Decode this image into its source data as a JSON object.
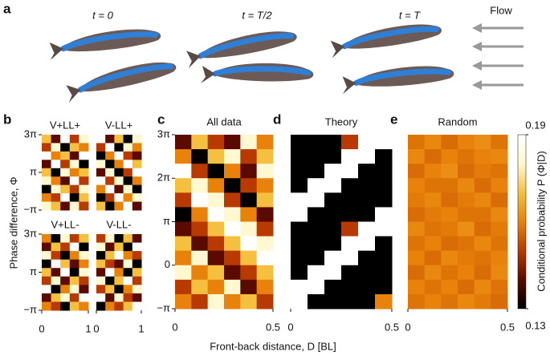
{
  "panel_a": {
    "label": "a",
    "times": [
      "t = 0",
      "t = T/2",
      "t = T"
    ],
    "flow": "Flow"
  },
  "y_label": "Phase difference, Φ",
  "x_label": "Front-back distance, D [BL]",
  "colorbar": {
    "label": "Conditional probability P (Φ|D)",
    "lim": [
      0.13,
      0.19
    ],
    "ticks": [
      0.13,
      0.19
    ],
    "colormap": [
      "#000000",
      "#5a0a00",
      "#b83a00",
      "#e8820a",
      "#f5c040",
      "#fff8d0",
      "#ffffff"
    ]
  },
  "chart_data": [
    {
      "type": "heatmap",
      "label": "b",
      "title": "V+LL+",
      "xlim": [
        0,
        1
      ],
      "ylim": [
        -3.1416,
        9.4248
      ],
      "yticks": [
        {
          "value": 9.4248,
          "label": "3π"
        },
        {
          "value": 3.1416,
          "label": "π"
        },
        {
          "value": -3.1416,
          "label": "−π"
        }
      ],
      "values": [
        [
          0.17,
          0.14,
          0.19,
          0.15,
          0.18
        ],
        [
          0.15,
          0.18,
          0.13,
          0.17,
          0.16
        ],
        [
          0.19,
          0.16,
          0.17,
          0.14,
          0.19
        ],
        [
          0.14,
          0.19,
          0.15,
          0.18,
          0.13
        ],
        [
          0.17,
          0.13,
          0.18,
          0.16,
          0.17
        ],
        [
          0.18,
          0.16,
          0.14,
          0.19,
          0.15
        ],
        [
          0.13,
          0.18,
          0.17,
          0.15,
          0.18
        ],
        [
          0.16,
          0.15,
          0.19,
          0.13,
          0.17
        ],
        [
          0.18,
          0.17,
          0.14,
          0.18,
          0.15
        ]
      ]
    },
    {
      "type": "heatmap",
      "title": "V-LL+",
      "xlim": [
        0,
        1
      ],
      "ylim": [
        -3.1416,
        9.4248
      ],
      "values": [
        [
          0.19,
          0.14,
          0.17,
          0.13,
          0.18
        ],
        [
          0.15,
          0.19,
          0.13,
          0.18,
          0.16
        ],
        [
          0.13,
          0.16,
          0.19,
          0.15,
          0.14
        ],
        [
          0.18,
          0.13,
          0.16,
          0.19,
          0.17
        ],
        [
          0.14,
          0.18,
          0.13,
          0.15,
          0.19
        ],
        [
          0.19,
          0.15,
          0.18,
          0.13,
          0.16
        ],
        [
          0.16,
          0.19,
          0.14,
          0.18,
          0.13
        ],
        [
          0.13,
          0.15,
          0.19,
          0.16,
          0.18
        ],
        [
          0.17,
          0.13,
          0.16,
          0.19,
          0.14
        ]
      ]
    },
    {
      "type": "heatmap",
      "title": "V+LL-",
      "xlim": [
        0,
        1
      ],
      "ylim": [
        -3.1416,
        9.4248
      ],
      "xticks": [
        0,
        1
      ],
      "yticks": [
        {
          "value": 9.4248,
          "label": "3π"
        },
        {
          "value": 3.1416,
          "label": "π"
        },
        {
          "value": -3.1416,
          "label": "−π"
        }
      ],
      "values": [
        [
          0.16,
          0.13,
          0.18,
          0.15,
          0.17
        ],
        [
          0.14,
          0.17,
          0.15,
          0.19,
          0.13
        ],
        [
          0.18,
          0.15,
          0.13,
          0.16,
          0.18
        ],
        [
          0.13,
          0.19,
          0.17,
          0.14,
          0.16
        ],
        [
          0.17,
          0.14,
          0.19,
          0.13,
          0.18
        ],
        [
          0.15,
          0.18,
          0.14,
          0.17,
          0.15
        ],
        [
          0.19,
          0.13,
          0.16,
          0.18,
          0.14
        ],
        [
          0.14,
          0.17,
          0.18,
          0.15,
          0.19
        ],
        [
          0.16,
          0.15,
          0.13,
          0.17,
          0.16
        ]
      ]
    },
    {
      "type": "heatmap",
      "title": "V-LL-",
      "xlim": [
        0,
        1
      ],
      "ylim": [
        -3.1416,
        9.4248
      ],
      "xticks": [
        0,
        1
      ],
      "values": [
        [
          0.15,
          0.18,
          0.13,
          0.17,
          0.14
        ],
        [
          0.18,
          0.14,
          0.17,
          0.13,
          0.19
        ],
        [
          0.13,
          0.17,
          0.19,
          0.16,
          0.15
        ],
        [
          0.17,
          0.15,
          0.14,
          0.18,
          0.13
        ],
        [
          0.14,
          0.19,
          0.16,
          0.13,
          0.17
        ],
        [
          0.18,
          0.13,
          0.17,
          0.19,
          0.15
        ],
        [
          0.15,
          0.17,
          0.13,
          0.16,
          0.18
        ],
        [
          0.19,
          0.14,
          0.18,
          0.15,
          0.14
        ],
        [
          0.13,
          0.16,
          0.15,
          0.17,
          0.19
        ]
      ]
    },
    {
      "type": "heatmap",
      "label": "c",
      "title": "All data",
      "xlim": [
        0,
        0.5
      ],
      "ylim": [
        -3.1416,
        9.4248
      ],
      "xticks": [
        0,
        0.5
      ],
      "yticks": [
        {
          "value": 9.4248,
          "label": "3π"
        },
        {
          "value": 6.2832,
          "label": "2π"
        },
        {
          "value": 3.1416,
          "label": "π"
        },
        0,
        {
          "value": -3.1416,
          "label": "−π"
        }
      ],
      "values": [
        [
          0.14,
          0.17,
          0.15,
          0.14,
          0.18,
          0.16
        ],
        [
          0.16,
          0.13,
          0.17,
          0.18,
          0.15,
          0.17
        ],
        [
          0.19,
          0.15,
          0.13,
          0.16,
          0.14,
          0.18
        ],
        [
          0.17,
          0.18,
          0.16,
          0.13,
          0.15,
          0.16
        ],
        [
          0.15,
          0.19,
          0.18,
          0.15,
          0.13,
          0.17
        ],
        [
          0.13,
          0.16,
          0.19,
          0.18,
          0.16,
          0.14
        ],
        [
          0.14,
          0.15,
          0.17,
          0.19,
          0.18,
          0.15
        ],
        [
          0.17,
          0.14,
          0.15,
          0.17,
          0.19,
          0.18
        ],
        [
          0.16,
          0.18,
          0.14,
          0.15,
          0.17,
          0.19
        ],
        [
          0.18,
          0.16,
          0.17,
          0.14,
          0.15,
          0.17
        ],
        [
          0.15,
          0.17,
          0.16,
          0.18,
          0.14,
          0.16
        ],
        [
          0.16,
          0.15,
          0.18,
          0.16,
          0.17,
          0.15
        ]
      ]
    },
    {
      "type": "heatmap",
      "label": "d",
      "title": "Theory",
      "xlim": [
        0,
        0.5
      ],
      "ylim": [
        -3.1416,
        9.4248
      ],
      "xticks": [
        0,
        0.5
      ],
      "values": [
        [
          0.13,
          0.13,
          0.13,
          0.15,
          0.19,
          0.19
        ],
        [
          0.13,
          0.13,
          0.13,
          0.19,
          0.19,
          0.13
        ],
        [
          0.13,
          0.13,
          0.19,
          0.19,
          0.13,
          0.13
        ],
        [
          0.13,
          0.19,
          0.19,
          0.13,
          0.13,
          0.13
        ],
        [
          0.19,
          0.19,
          0.13,
          0.13,
          0.13,
          0.13
        ],
        [
          0.19,
          0.13,
          0.13,
          0.13,
          0.13,
          0.19
        ],
        [
          0.13,
          0.13,
          0.13,
          0.15,
          0.19,
          0.19
        ],
        [
          0.13,
          0.13,
          0.13,
          0.19,
          0.19,
          0.13
        ],
        [
          0.13,
          0.13,
          0.19,
          0.19,
          0.13,
          0.13
        ],
        [
          0.13,
          0.19,
          0.19,
          0.13,
          0.13,
          0.13
        ],
        [
          0.19,
          0.19,
          0.13,
          0.13,
          0.13,
          0.13
        ],
        [
          0.19,
          0.13,
          0.13,
          0.13,
          0.13,
          0.16
        ]
      ]
    },
    {
      "type": "heatmap",
      "label": "e",
      "title": "Random",
      "xlim": [
        0,
        0.5
      ],
      "ylim": [
        -3.1416,
        9.4248
      ],
      "xticks": [
        0,
        0.5
      ],
      "values": [
        [
          0.158,
          0.161,
          0.157,
          0.16,
          0.162,
          0.158
        ],
        [
          0.161,
          0.157,
          0.16,
          0.158,
          0.16,
          0.161
        ],
        [
          0.157,
          0.16,
          0.162,
          0.157,
          0.159,
          0.158
        ],
        [
          0.16,
          0.158,
          0.158,
          0.161,
          0.157,
          0.16
        ],
        [
          0.159,
          0.161,
          0.157,
          0.159,
          0.161,
          0.157
        ],
        [
          0.157,
          0.159,
          0.16,
          0.158,
          0.158,
          0.161
        ],
        [
          0.161,
          0.158,
          0.159,
          0.162,
          0.157,
          0.159
        ],
        [
          0.158,
          0.16,
          0.157,
          0.158,
          0.161,
          0.158
        ],
        [
          0.16,
          0.157,
          0.161,
          0.159,
          0.158,
          0.16
        ],
        [
          0.157,
          0.161,
          0.158,
          0.16,
          0.157,
          0.161
        ],
        [
          0.16,
          0.158,
          0.16,
          0.157,
          0.161,
          0.158
        ],
        [
          0.158,
          0.16,
          0.158,
          0.161,
          0.159,
          0.157
        ]
      ]
    }
  ]
}
